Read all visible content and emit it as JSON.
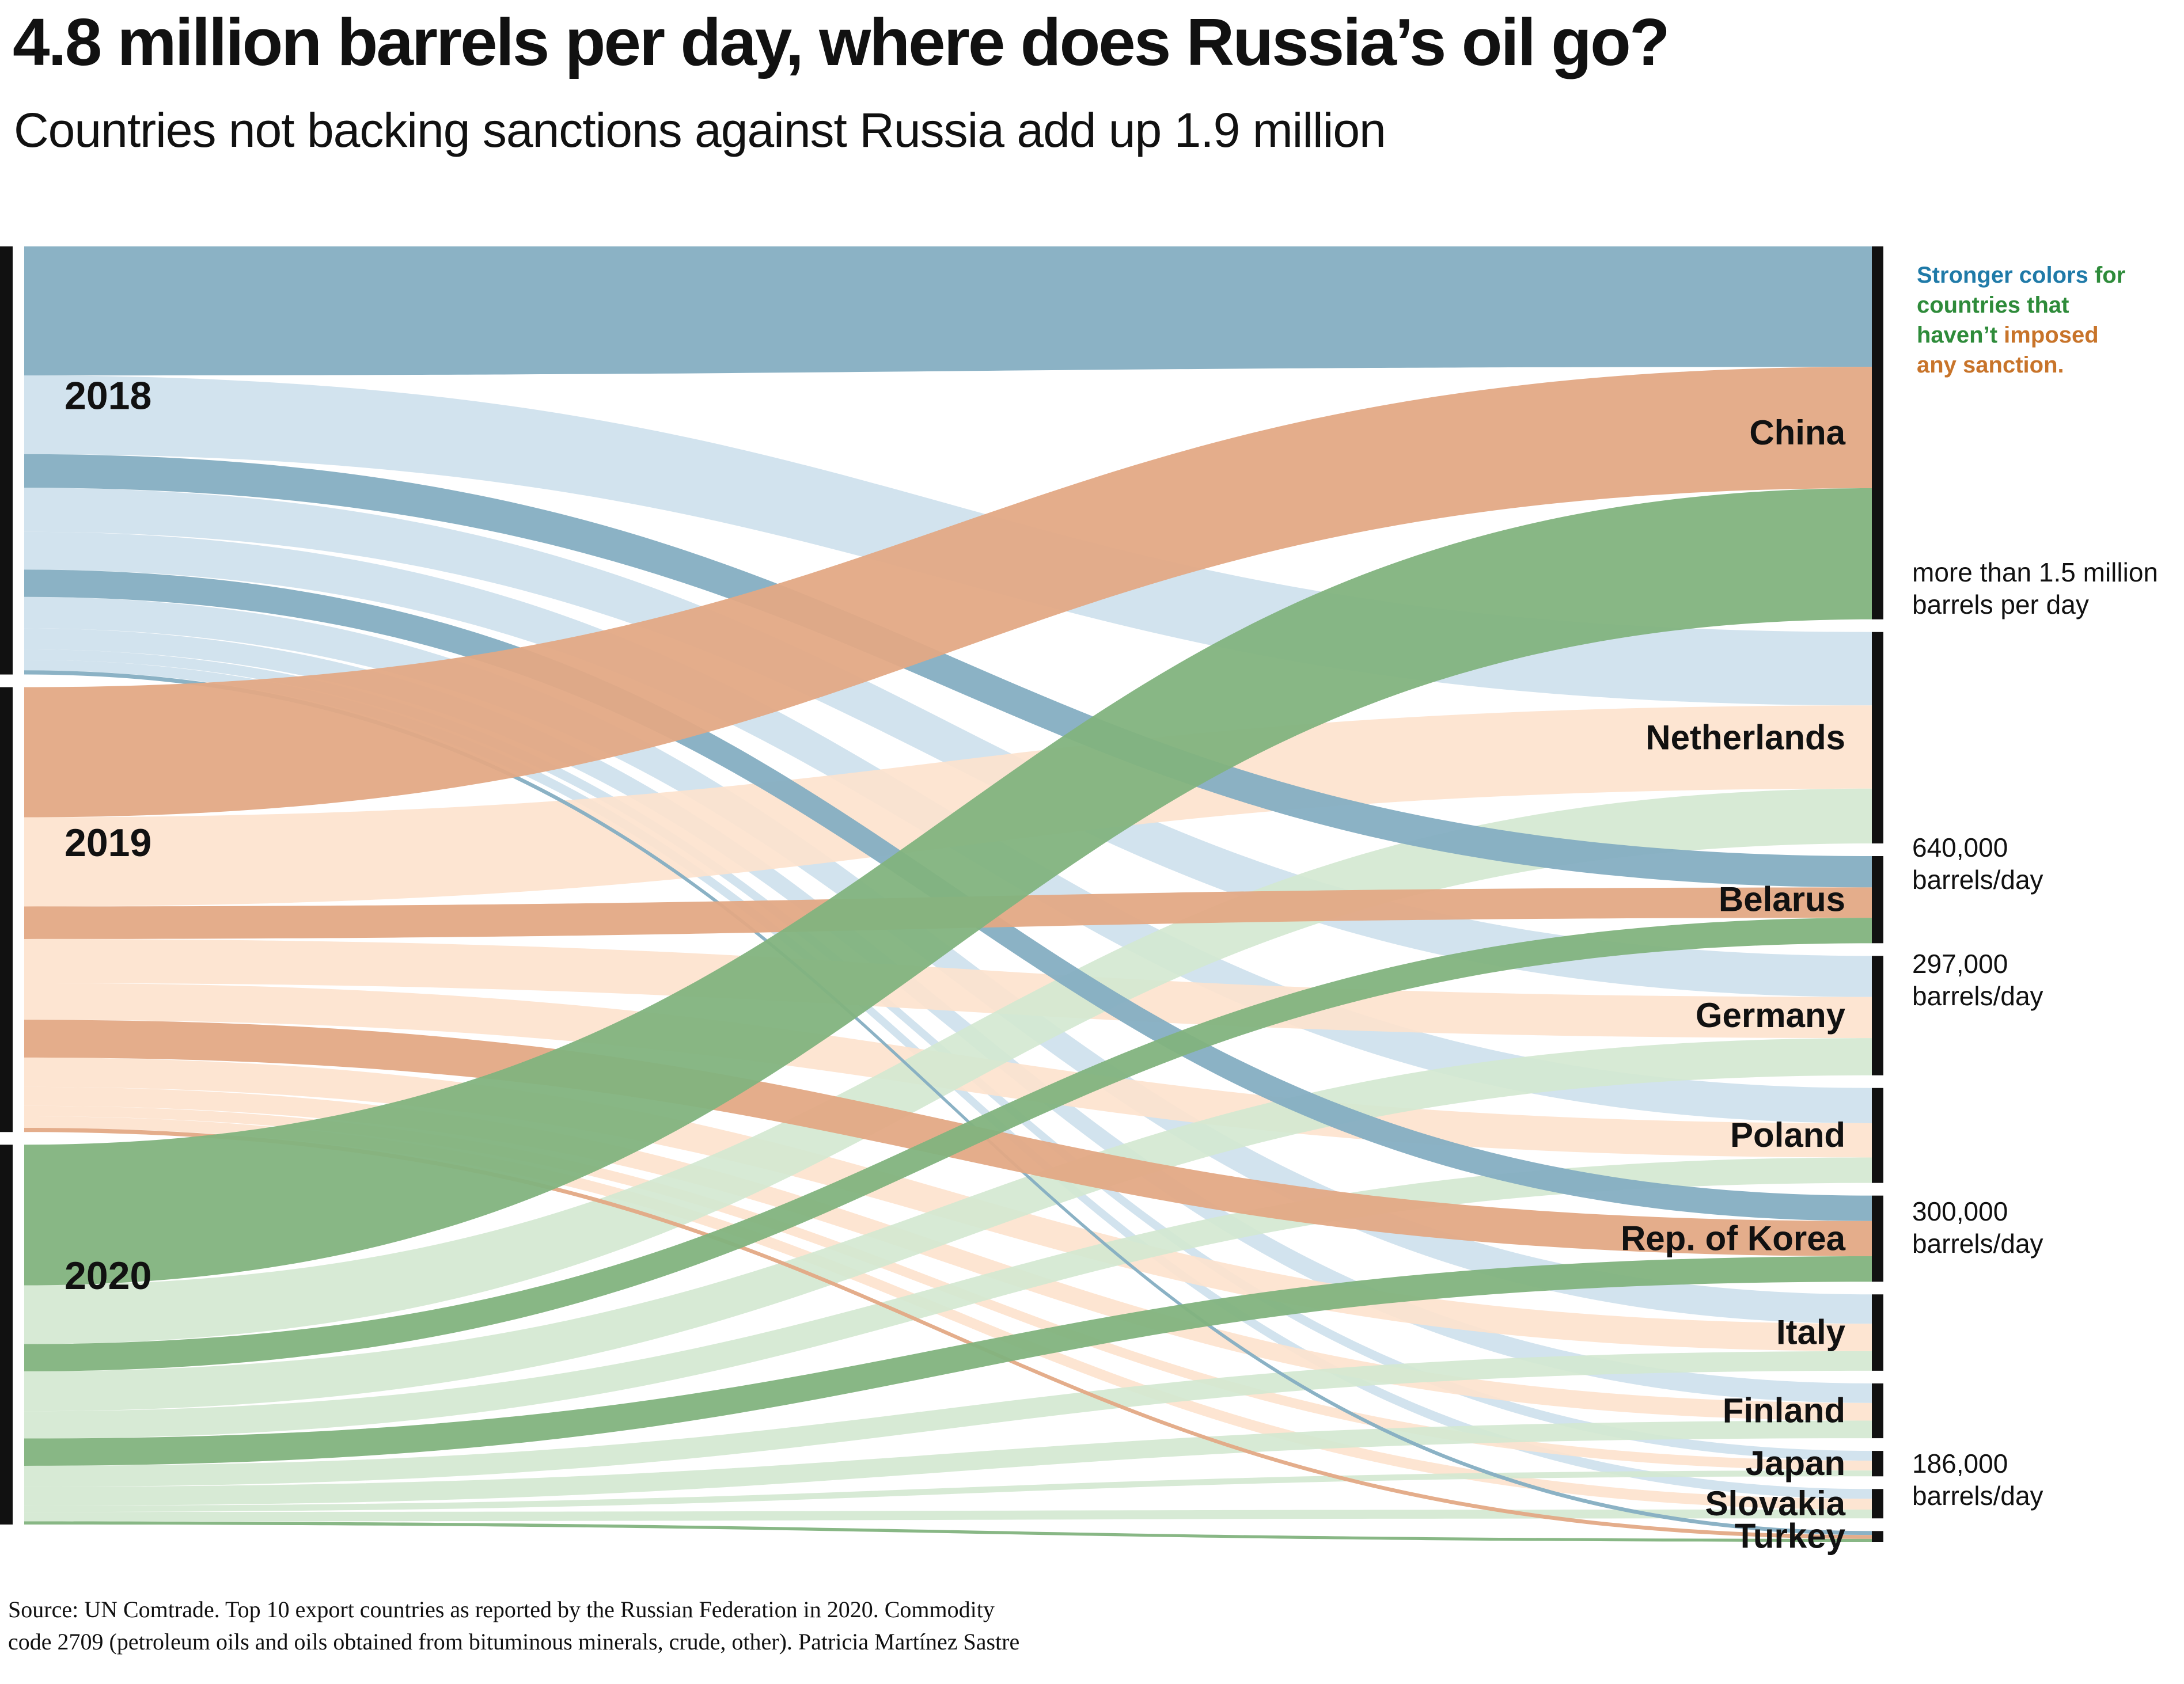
{
  "header": {
    "title": "4.8 million barrels per day, where does Russia’s oil go?",
    "subtitle": "Countries not backing sanctions against Russia add up 1.9 million"
  },
  "legend": {
    "part1": "Stronger colors",
    "part2": " for countries that",
    "part3": "haven’t",
    "part4": " imposed",
    "part5": "any sanction.",
    "color_blue": "#1f7aa8",
    "color_green": "#2e8b3a",
    "color_orange": "#c8742a"
  },
  "source": {
    "line1": "Source: UN Comtrade. Top 10 export countries as reported by the Russian Federation in 2020. Commodity",
    "line2": "code 2709 (petroleum oils and oils obtained from bituminous minerals, crude, other). Patricia Martínez Sastre"
  },
  "scale_labels": [
    {
      "line1": "more than 1.5 million",
      "line2": "barrels per day"
    },
    {
      "line1": "640,000",
      "line2": "barrels/day"
    },
    {
      "line1": "297,000",
      "line2": "barrels/day"
    },
    {
      "line1": "300,000",
      "line2": "barrels/day"
    },
    {
      "line1": "186,000",
      "line2": " barrels/day"
    }
  ],
  "chart_data": {
    "type": "sankey",
    "unit": "barrels per day",
    "years": [
      "2018",
      "2019",
      "2020"
    ],
    "year_colors": {
      "2018": {
        "strong": "#85aec2",
        "light": "#cde0ec"
      },
      "2019": {
        "strong": "#e3a985",
        "light": "#fde2cd"
      },
      "2020": {
        "strong": "#82b37e",
        "light": "#d3e8d0"
      }
    },
    "countries": [
      {
        "name": "China",
        "sanctions": false,
        "values": [
          1230000,
          1240000,
          1340000
        ]
      },
      {
        "name": "Netherlands",
        "sanctions": true,
        "values": [
          750000,
          850000,
          560000
        ]
      },
      {
        "name": "Belarus",
        "sanctions": false,
        "values": [
          320000,
          310000,
          260000
        ]
      },
      {
        "name": "Germany",
        "sanctions": true,
        "values": [
          420000,
          420000,
          380000
        ]
      },
      {
        "name": "Poland",
        "sanctions": true,
        "values": [
          360000,
          350000,
          260000
        ]
      },
      {
        "name": "Rep. of Korea",
        "sanctions": false,
        "values": [
          260000,
          360000,
          260000
        ]
      },
      {
        "name": "Italy",
        "sanctions": true,
        "values": [
          300000,
          280000,
          200000
        ]
      },
      {
        "name": "Finland",
        "sanctions": true,
        "values": [
          200000,
          180000,
          180000
        ]
      },
      {
        "name": "Japan",
        "sanctions": true,
        "values": [
          100000,
          100000,
          60000
        ]
      },
      {
        "name": "Slovakia",
        "sanctions": true,
        "values": [
          100000,
          110000,
          90000
        ]
      },
      {
        "name": "Turkey",
        "sanctions": false,
        "values": [
          40000,
          40000,
          30000
        ]
      }
    ]
  }
}
